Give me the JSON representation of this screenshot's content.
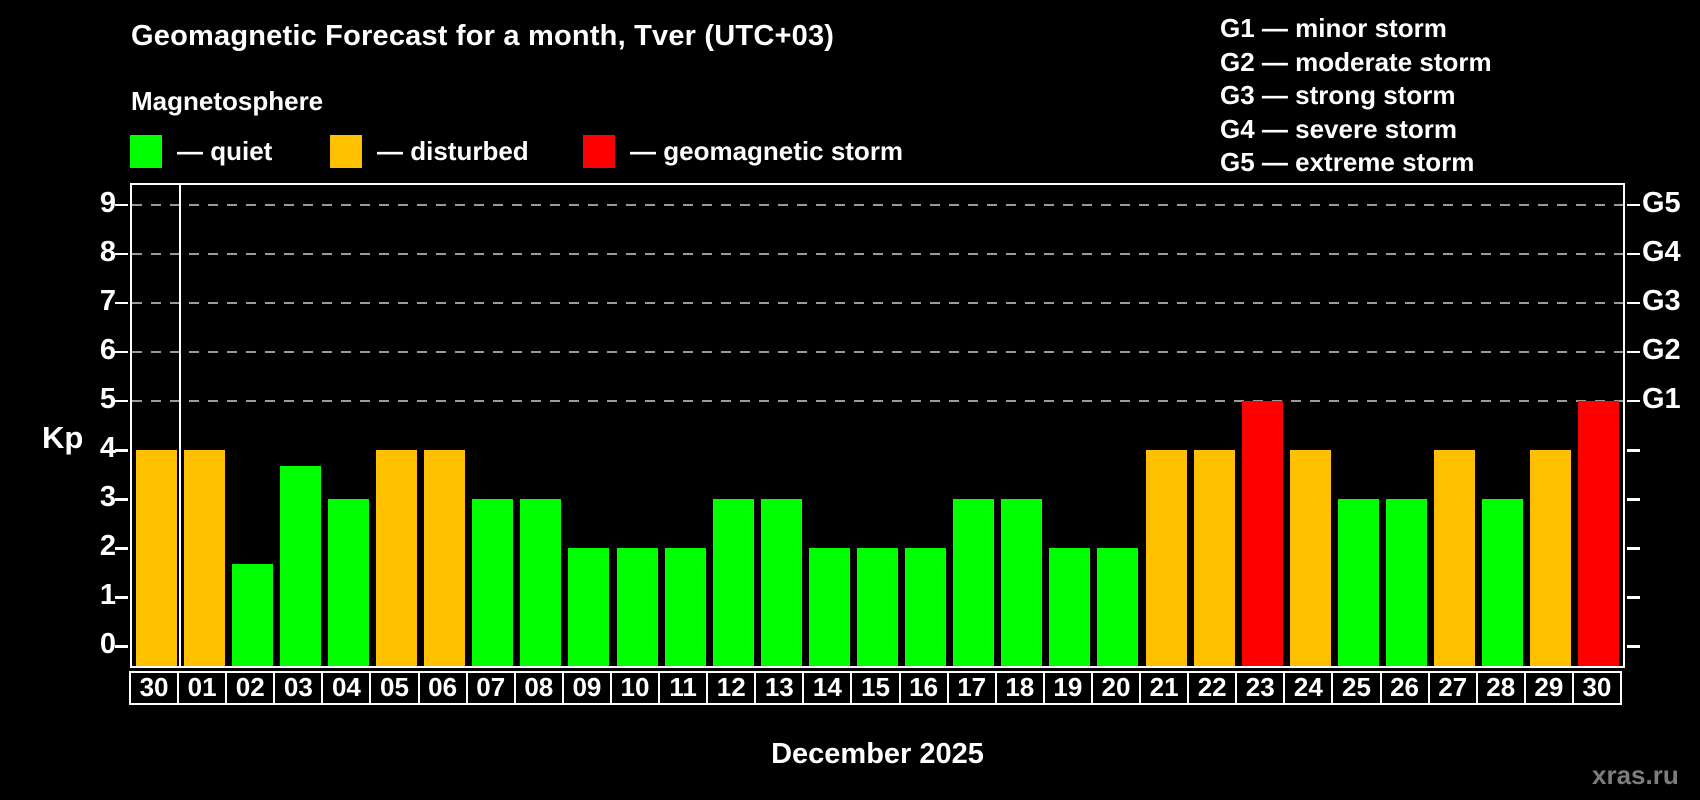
{
  "title": "Geomagnetic Forecast for a month, Tver (UTC+03)",
  "subtitle": "Magnetosphere",
  "watermark": "xras.ru",
  "status_legend": [
    {
      "key": "quiet",
      "label": "— quiet",
      "color": "#00FF00"
    },
    {
      "key": "disturbed",
      "label": "— disturbed",
      "color": "#FFC000"
    },
    {
      "key": "storm",
      "label": "— geomagnetic storm",
      "color": "#FF0000"
    }
  ],
  "storm_scale_legend": [
    "G1 — minor storm",
    "G2 — moderate storm",
    "G3 — strong storm",
    "G4 — severe storm",
    "G5 — extreme storm"
  ],
  "chart_data": {
    "type": "bar",
    "title": "Geomagnetic Forecast for a month, Tver (UTC+03)",
    "xlabel": "December 2025",
    "ylabel": "Kp",
    "ylim": [
      -0.4,
      9.4
    ],
    "yticks": [
      0,
      1,
      2,
      3,
      4,
      5,
      6,
      7,
      8,
      9
    ],
    "gridlines_at": [
      5,
      6,
      7,
      8,
      9
    ],
    "grid": "dashed horizontal, only at Kp 5-9",
    "legend_position": "top",
    "right_axis_labels": [
      {
        "label": "G1",
        "kp": 5
      },
      {
        "label": "G2",
        "kp": 6
      },
      {
        "label": "G3",
        "kp": 7
      },
      {
        "label": "G4",
        "kp": 8
      },
      {
        "label": "G5",
        "kp": 9
      }
    ],
    "status_colors": {
      "quiet": "#00FF00",
      "disturbed": "#FFC000",
      "storm": "#FF0000"
    },
    "month_separator_after_index": 0,
    "categories": [
      "30",
      "01",
      "02",
      "03",
      "04",
      "05",
      "06",
      "07",
      "08",
      "09",
      "10",
      "11",
      "12",
      "13",
      "14",
      "15",
      "16",
      "17",
      "18",
      "19",
      "20",
      "21",
      "22",
      "23",
      "24",
      "25",
      "26",
      "27",
      "28",
      "29",
      "30"
    ],
    "values": [
      4,
      4,
      1.67,
      3.67,
      3,
      4,
      4,
      3,
      3,
      2,
      2,
      2,
      3,
      3,
      2,
      2,
      2,
      3,
      3,
      2,
      2,
      4,
      4,
      5,
      4,
      3,
      3,
      4,
      3,
      4,
      5
    ],
    "statuses": [
      "disturbed",
      "disturbed",
      "quiet",
      "quiet",
      "quiet",
      "disturbed",
      "disturbed",
      "quiet",
      "quiet",
      "quiet",
      "quiet",
      "quiet",
      "quiet",
      "quiet",
      "quiet",
      "quiet",
      "quiet",
      "quiet",
      "quiet",
      "quiet",
      "quiet",
      "disturbed",
      "disturbed",
      "storm",
      "disturbed",
      "quiet",
      "quiet",
      "disturbed",
      "quiet",
      "disturbed",
      "storm"
    ]
  }
}
